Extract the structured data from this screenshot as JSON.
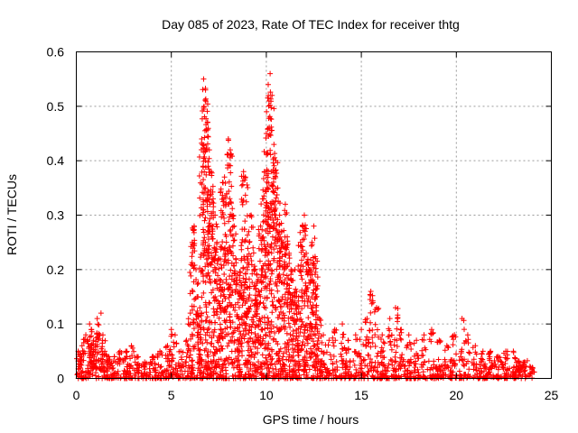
{
  "chart_data": {
    "type": "scatter",
    "title": "Day 085 of 2023, Rate Of TEC Index for receiver thtg",
    "xlabel": "GPS time / hours",
    "ylabel": "ROTI / TECUs",
    "xlim": [
      0,
      25
    ],
    "ylim": [
      0,
      0.6
    ],
    "xticks": [
      0,
      5,
      10,
      15,
      20,
      25
    ],
    "yticks": [
      0,
      0.1,
      0.2,
      0.3,
      0.4,
      0.5,
      0.6
    ],
    "grid": true,
    "marker": "+",
    "color": "#ff0000",
    "series": [
      {
        "values_note": "dense receiver ROTI samples; representative envelope points",
        "x": [
          0.1,
          0.2,
          0.3,
          0.5,
          0.7,
          0.8,
          0.9,
          1.0,
          1.1,
          1.3,
          1.4,
          1.5,
          1.7,
          2.0,
          2.3,
          2.6,
          2.9,
          3.2,
          3.6,
          4.0,
          4.4,
          4.8,
          5.0,
          5.2,
          5.5,
          5.8,
          6.0,
          6.1,
          6.2,
          6.3,
          6.4,
          6.5,
          6.6,
          6.7,
          6.8,
          6.9,
          7.0,
          7.1,
          7.2,
          7.3,
          7.4,
          7.5,
          7.6,
          7.7,
          7.8,
          7.9,
          8.0,
          8.1,
          8.2,
          8.3,
          8.4,
          8.5,
          8.6,
          8.7,
          8.8,
          8.9,
          9.0,
          9.1,
          9.2,
          9.3,
          9.4,
          9.5,
          9.6,
          9.7,
          9.8,
          9.9,
          10.0,
          10.1,
          10.2,
          10.3,
          10.4,
          10.5,
          10.6,
          10.7,
          10.8,
          10.9,
          11.0,
          11.1,
          11.2,
          11.3,
          11.4,
          11.5,
          11.6,
          11.7,
          11.8,
          11.9,
          12.0,
          12.1,
          12.2,
          12.3,
          12.4,
          12.5,
          12.6,
          12.7,
          12.8,
          13.0,
          13.3,
          13.6,
          14.0,
          14.3,
          14.7,
          15.0,
          15.3,
          15.5,
          15.8,
          16.1,
          16.5,
          16.8,
          17.1,
          17.5,
          17.9,
          18.3,
          18.7,
          19.1,
          19.5,
          19.9,
          20.3,
          20.6,
          21.0,
          21.4,
          21.8,
          22.2,
          22.6,
          23.0,
          23.3,
          23.6,
          24.0
        ],
        "y": [
          0.05,
          0.04,
          0.06,
          0.08,
          0.1,
          0.09,
          0.07,
          0.06,
          0.11,
          0.12,
          0.08,
          0.05,
          0.04,
          0.04,
          0.05,
          0.05,
          0.06,
          0.04,
          0.03,
          0.04,
          0.05,
          0.06,
          0.09,
          0.08,
          0.05,
          0.07,
          0.12,
          0.25,
          0.28,
          0.2,
          0.15,
          0.13,
          0.44,
          0.55,
          0.53,
          0.47,
          0.42,
          0.38,
          0.33,
          0.3,
          0.25,
          0.22,
          0.18,
          0.36,
          0.37,
          0.25,
          0.44,
          0.42,
          0.3,
          0.28,
          0.22,
          0.19,
          0.18,
          0.22,
          0.38,
          0.37,
          0.2,
          0.25,
          0.3,
          0.24,
          0.2,
          0.19,
          0.16,
          0.28,
          0.33,
          0.38,
          0.45,
          0.54,
          0.56,
          0.52,
          0.43,
          0.4,
          0.35,
          0.3,
          0.27,
          0.25,
          0.32,
          0.26,
          0.23,
          0.2,
          0.18,
          0.2,
          0.16,
          0.15,
          0.25,
          0.28,
          0.3,
          0.23,
          0.21,
          0.2,
          0.25,
          0.28,
          0.22,
          0.17,
          0.11,
          0.08,
          0.07,
          0.09,
          0.1,
          0.07,
          0.08,
          0.09,
          0.11,
          0.16,
          0.13,
          0.08,
          0.11,
          0.13,
          0.09,
          0.08,
          0.07,
          0.08,
          0.09,
          0.07,
          0.06,
          0.08,
          0.11,
          0.08,
          0.06,
          0.05,
          0.05,
          0.04,
          0.05,
          0.05,
          0.03,
          0.03,
          0.02
        ]
      }
    ]
  }
}
